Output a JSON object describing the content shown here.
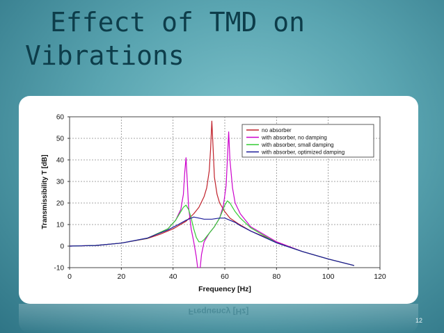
{
  "slide": {
    "title_line1": "Effect of TMD on",
    "title_line2": "Vibrations",
    "page_number": "12",
    "reflection_text": "Frequency [Hz]"
  },
  "colors": {
    "no_absorber": "#c0202a",
    "no_damping": "#cc00cc",
    "small_damping": "#33cc33",
    "optimized_damping": "#1a1a99",
    "grid": "#888888"
  },
  "chart_data": {
    "type": "line",
    "title": "",
    "xlabel": "Frequency [Hz]",
    "ylabel": "Transmissibility T [dB]",
    "xlim": [
      0,
      120
    ],
    "ylim": [
      -10,
      60
    ],
    "xticks": [
      0,
      20,
      40,
      60,
      80,
      100,
      120
    ],
    "yticks": [
      -10,
      0,
      10,
      20,
      30,
      40,
      50,
      60
    ],
    "grid": true,
    "legend_position": "top-right",
    "series": [
      {
        "name": "no absorber",
        "color": "#c0202a",
        "x": [
          0,
          10,
          20,
          30,
          35,
          40,
          45,
          48,
          50,
          52,
          53,
          54,
          54.5,
          55,
          55.5,
          56,
          57,
          58,
          60,
          62,
          65,
          70,
          80,
          90,
          100,
          110
        ],
        "y": [
          0,
          0.3,
          1.4,
          3.5,
          5.5,
          8,
          11.5,
          15,
          18,
          23,
          27,
          35,
          45,
          58,
          45,
          32,
          24,
          20,
          16,
          13,
          10.5,
          7,
          2,
          -2.5,
          -6,
          -9
        ]
      },
      {
        "name": "with absorber, no damping",
        "color": "#cc00cc",
        "x": [
          0,
          10,
          20,
          30,
          38,
          41,
          43,
          44,
          44.5,
          45,
          45.5,
          46,
          47,
          48,
          49,
          49.5,
          50,
          50.5,
          51,
          52,
          54,
          56,
          58,
          59.5,
          60.5,
          61,
          61.5,
          62,
          63,
          64,
          66,
          70,
          80,
          90,
          100,
          110
        ],
        "y": [
          0,
          0.3,
          1.4,
          3.6,
          8,
          12,
          17,
          24,
          34,
          41,
          30,
          18,
          8,
          2,
          -5,
          -10,
          -10,
          -10,
          -4,
          2,
          6,
          9,
          13,
          19,
          28,
          40,
          53,
          40,
          27,
          20,
          15,
          9,
          2,
          -2.5,
          -6,
          -9
        ]
      },
      {
        "name": "with absorber, small damping",
        "color": "#33cc33",
        "x": [
          0,
          10,
          20,
          30,
          38,
          41,
          43,
          44,
          45,
          46,
          47,
          48,
          49,
          50,
          51,
          52,
          54,
          56,
          58,
          59,
          60,
          61,
          62,
          63,
          64,
          66,
          70,
          80,
          90,
          100,
          110
        ],
        "y": [
          0,
          0.3,
          1.4,
          3.6,
          8,
          12,
          16,
          18,
          19,
          17,
          13,
          8,
          4,
          2,
          2,
          3,
          6,
          9,
          13,
          16,
          19,
          21,
          20,
          18,
          16,
          13,
          8.5,
          1.5,
          -2.5,
          -6,
          -9
        ]
      },
      {
        "name": "with absorber, optimized damping",
        "color": "#1a1a99",
        "x": [
          0,
          10,
          20,
          30,
          38,
          42,
          45,
          48,
          50,
          52,
          55,
          58,
          60,
          62,
          64,
          66,
          70,
          80,
          90,
          100,
          110
        ],
        "y": [
          0,
          0.3,
          1.4,
          3.7,
          7.5,
          10,
          12,
          13.5,
          13,
          12.5,
          12.5,
          13,
          13,
          12,
          11,
          9.5,
          7,
          1.5,
          -2.5,
          -6,
          -9
        ]
      }
    ]
  }
}
